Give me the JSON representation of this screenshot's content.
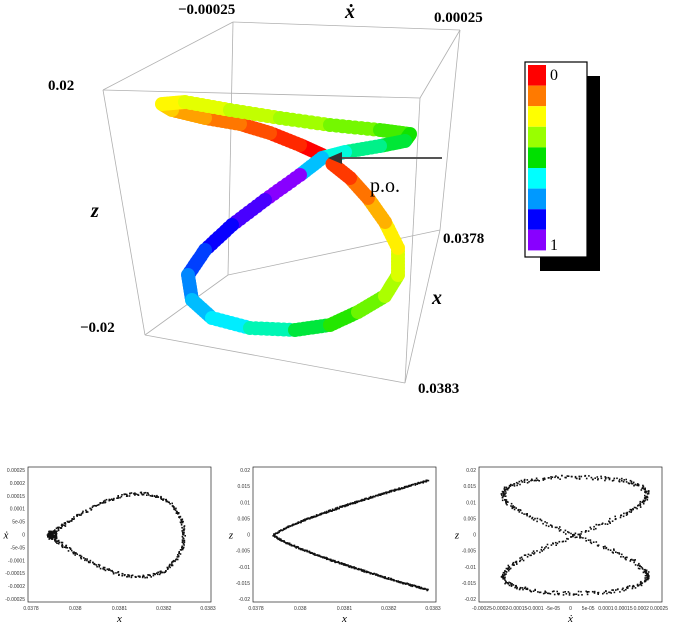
{
  "chart_data": [
    {
      "type": "scatter",
      "projection": "3d",
      "axes": {
        "x": {
          "label": "x",
          "ticks": [
            "0.0378",
            "0.0383"
          ]
        },
        "xdot": {
          "label": "ẋ",
          "ticks": [
            "−0.00025",
            "0.00025"
          ]
        },
        "z": {
          "label": "z",
          "ticks": [
            "0.02",
            "−0.02"
          ]
        }
      },
      "annotation": "p.o.",
      "colorbar": {
        "labels": [
          "0",
          "1"
        ],
        "colors": [
          "#ff0000",
          "#ff7a00",
          "#ffff00",
          "#99ff00",
          "#00e000",
          "#00ffff",
          "#0099ff",
          "#0000ff",
          "#8800ff"
        ]
      },
      "series": [
        {
          "values": "figure-eight loop around periodic orbit, colored by phase 0–1"
        }
      ]
    },
    {
      "type": "scatter",
      "xlabel": "x",
      "ylabel": "ẋ",
      "xticks": [
        "0.0378",
        "0.038",
        "0.0381",
        "0.0382",
        "0.0383"
      ],
      "yticks": [
        "0.00025",
        "0.0002",
        "0.00015",
        "0.0001",
        "5e-05",
        "0",
        "-5e-05",
        "-0.0001",
        "-0.00015",
        "-0.0002",
        "-0.00025"
      ],
      "xlim": [
        0.03785,
        0.0383
      ],
      "ylim": [
        -0.00025,
        0.00025
      ],
      "shape": "teardrop"
    },
    {
      "type": "scatter",
      "xlabel": "x",
      "ylabel": "z",
      "xticks": [
        "0.0378",
        "0.038",
        "0.0381",
        "0.0382",
        "0.0383"
      ],
      "yticks": [
        "0.02",
        "0.015",
        "0.01",
        "0.005",
        "0",
        "-0.005",
        "-0.01",
        "-0.015",
        "-0.02"
      ],
      "xlim": [
        0.03785,
        0.0383
      ],
      "ylim": [
        -0.02,
        0.02
      ],
      "shape": "chevron"
    },
    {
      "type": "scatter",
      "xlabel": "ẋ",
      "ylabel": "z",
      "xticks": [
        "-0.00025",
        "-0.0002",
        "-0.00015",
        "-0.0001",
        "-5e-05",
        "0",
        "5e-05",
        "0.0001",
        "0.00015",
        "0.0002",
        "0.00025"
      ],
      "yticks": [
        "0.02",
        "0.015",
        "0.01",
        "0.005",
        "0",
        "-0.005",
        "-0.01",
        "-0.015",
        "-0.02"
      ],
      "xlim": [
        -0.00025,
        0.00025
      ],
      "ylim": [
        -0.02,
        0.02
      ],
      "shape": "figure-eight"
    }
  ]
}
